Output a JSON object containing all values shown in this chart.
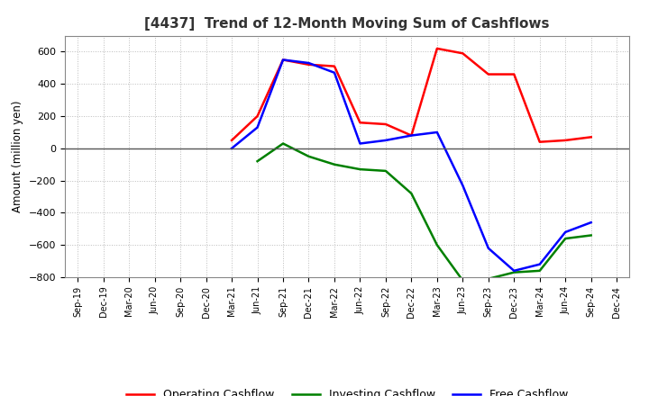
{
  "title": "[4437]  Trend of 12-Month Moving Sum of Cashflows",
  "ylabel": "Amount (million yen)",
  "x_labels": [
    "Sep-19",
    "Dec-19",
    "Mar-20",
    "Jun-20",
    "Sep-20",
    "Dec-20",
    "Mar-21",
    "Jun-21",
    "Sep-21",
    "Dec-21",
    "Mar-22",
    "Jun-22",
    "Sep-22",
    "Dec-22",
    "Mar-23",
    "Jun-23",
    "Sep-23",
    "Dec-23",
    "Mar-24",
    "Jun-24",
    "Sep-24",
    "Dec-24"
  ],
  "operating": [
    null,
    null,
    null,
    null,
    null,
    null,
    50,
    200,
    550,
    520,
    510,
    160,
    150,
    80,
    620,
    590,
    460,
    460,
    40,
    50,
    70,
    null
  ],
  "investing": [
    null,
    null,
    null,
    null,
    null,
    null,
    null,
    -80,
    30,
    -50,
    -100,
    -130,
    -140,
    -280,
    -600,
    -820,
    -810,
    -770,
    -760,
    -560,
    -540,
    null
  ],
  "free": [
    null,
    null,
    null,
    null,
    null,
    null,
    0,
    130,
    550,
    530,
    470,
    30,
    50,
    80,
    100,
    -230,
    -620,
    -760,
    -720,
    -520,
    -460,
    null
  ],
  "operating_color": "#ff0000",
  "investing_color": "#008000",
  "free_color": "#0000ff",
  "ylim": [
    -800,
    700
  ],
  "yticks": [
    -800,
    -600,
    -400,
    -200,
    0,
    200,
    400,
    600
  ],
  "background_color": "#ffffff",
  "grid_color": "#bbbbbb",
  "title_color": "#333333",
  "legend_labels": [
    "Operating Cashflow",
    "Investing Cashflow",
    "Free Cashflow"
  ]
}
